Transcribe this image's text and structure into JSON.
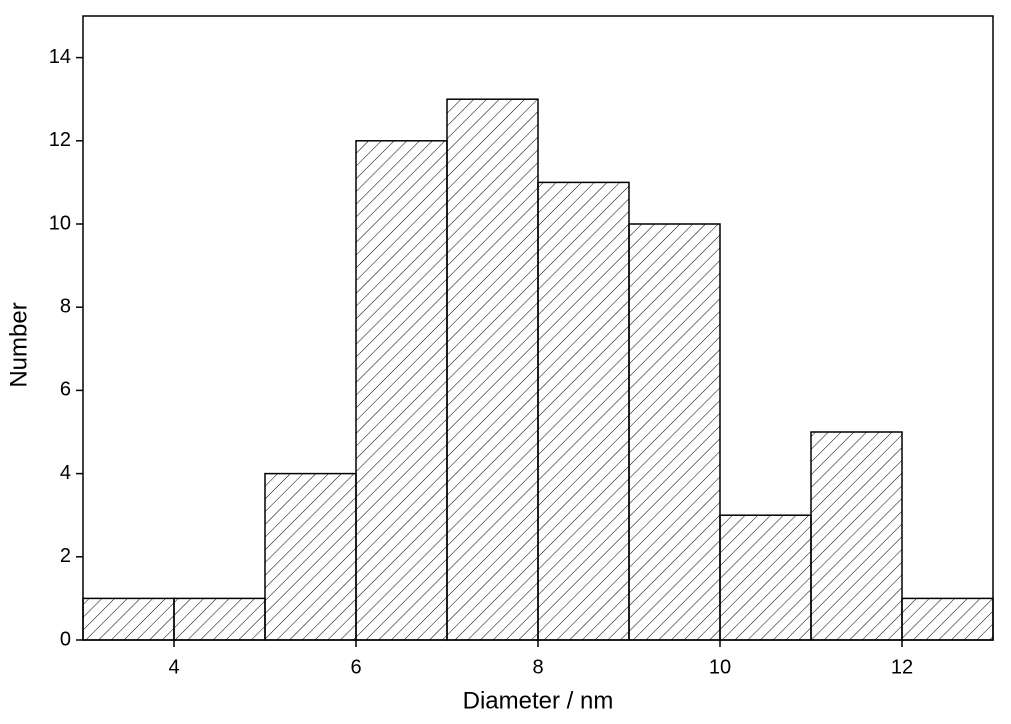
{
  "chart_data": {
    "type": "histogram",
    "x_label": "Diameter / nm",
    "y_label": "Number",
    "bins": [
      3,
      4,
      5,
      6,
      7,
      8,
      9,
      10,
      11,
      12,
      13
    ],
    "counts": [
      1,
      1,
      4,
      12,
      13,
      11,
      10,
      3,
      5,
      1
    ],
    "xlim": [
      3,
      13
    ],
    "xticks": [
      4,
      6,
      8,
      10,
      12
    ],
    "ylim": [
      0,
      15
    ],
    "yticks": [
      0,
      2,
      4,
      6,
      8,
      10,
      12,
      14
    ],
    "color": "#000000"
  }
}
